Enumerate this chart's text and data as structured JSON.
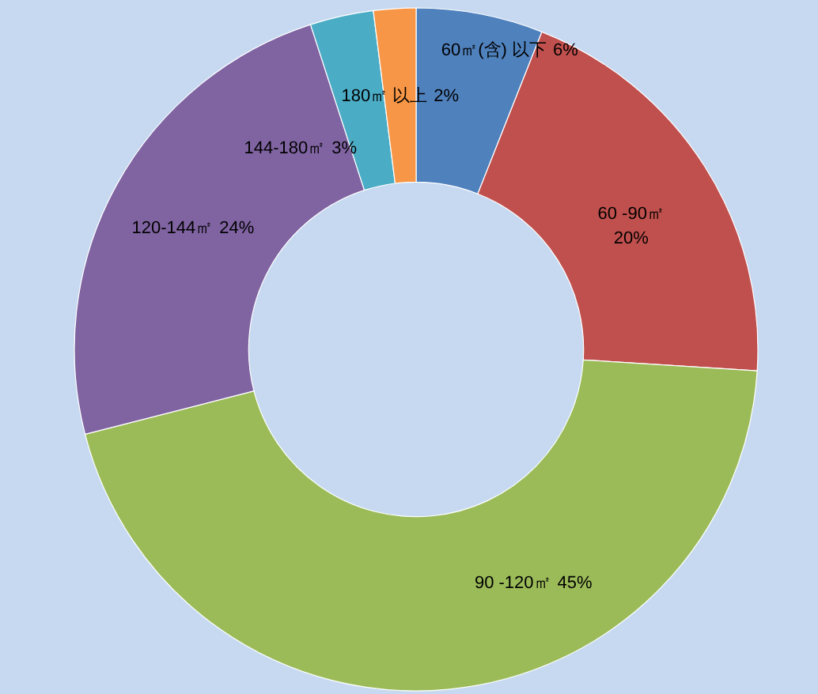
{
  "chart_data": {
    "type": "donut",
    "categories": [
      "60㎡(含) 以下",
      "60 -90㎡",
      "90 -120㎡",
      "120-144㎡",
      "144-180㎡",
      "180㎡ 以上"
    ],
    "values": [
      6,
      20,
      45,
      24,
      3,
      2
    ],
    "value_labels": [
      "6%",
      "20%",
      "45%",
      "24%",
      "3%",
      "2%"
    ],
    "colors": [
      "#4f81bd",
      "#c0504d",
      "#9bbb59",
      "#8064a2",
      "#4bacc6",
      "#f79646"
    ]
  }
}
